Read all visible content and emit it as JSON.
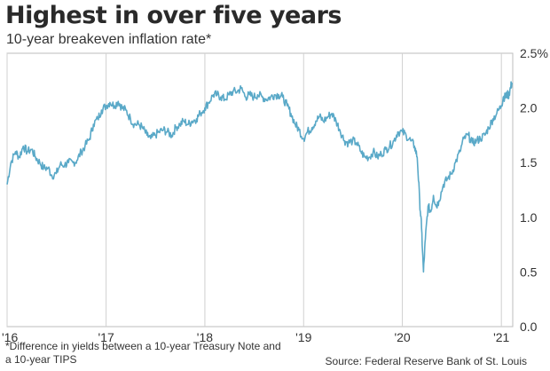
{
  "header": {
    "title": "Highest in over five years",
    "subtitle": "10-year breakeven inflation rate*"
  },
  "footer": {
    "footnote": "*Difference in yields between a 10-year Treasury Note and a 10-year TIPS",
    "source": "Source: Federal Reserve Bank of St. Louis"
  },
  "chart_data": {
    "type": "line",
    "title": "Highest in over five years",
    "subtitle": "10-year breakeven inflation rate*",
    "xlabel": "",
    "ylabel": "",
    "x_ticks": [
      {
        "date": "2016-01-01",
        "label": "'16"
      },
      {
        "date": "2017-01-01",
        "label": "'17"
      },
      {
        "date": "2018-01-01",
        "label": "'18"
      },
      {
        "date": "2019-01-01",
        "label": "'19"
      },
      {
        "date": "2020-01-01",
        "label": "'20"
      },
      {
        "date": "2021-01-01",
        "label": "'21"
      }
    ],
    "y_ticks": [
      {
        "value": 0.0,
        "label": "0.0"
      },
      {
        "value": 0.5,
        "label": "0.5"
      },
      {
        "value": 1.0,
        "label": "1.0"
      },
      {
        "value": 1.5,
        "label": "1.5"
      },
      {
        "value": 2.0,
        "label": "2.0"
      },
      {
        "value": 2.5,
        "label": "2.5%"
      }
    ],
    "xlim": [
      "2016-01-01",
      "2021-02-12"
    ],
    "ylim": [
      0,
      2.5
    ],
    "y_axis_side": "right",
    "grid": "vertical at year ticks",
    "line_color": "#5aa9c8",
    "series": [
      {
        "points": [
          [
            "2016-01-01",
            1.3
          ],
          [
            "2016-01-15",
            1.5
          ],
          [
            "2016-02-01",
            1.6
          ],
          [
            "2016-02-15",
            1.55
          ],
          [
            "2016-03-01",
            1.65
          ],
          [
            "2016-03-15",
            1.6
          ],
          [
            "2016-04-01",
            1.62
          ],
          [
            "2016-04-15",
            1.55
          ],
          [
            "2016-05-01",
            1.5
          ],
          [
            "2016-05-15",
            1.45
          ],
          [
            "2016-06-01",
            1.45
          ],
          [
            "2016-06-15",
            1.38
          ],
          [
            "2016-07-01",
            1.4
          ],
          [
            "2016-07-15",
            1.48
          ],
          [
            "2016-08-01",
            1.48
          ],
          [
            "2016-08-15",
            1.5
          ],
          [
            "2016-09-01",
            1.5
          ],
          [
            "2016-09-15",
            1.52
          ],
          [
            "2016-10-01",
            1.6
          ],
          [
            "2016-10-15",
            1.65
          ],
          [
            "2016-11-01",
            1.72
          ],
          [
            "2016-11-15",
            1.85
          ],
          [
            "2016-12-01",
            1.9
          ],
          [
            "2016-12-15",
            1.98
          ],
          [
            "2017-01-01",
            2.02
          ],
          [
            "2017-01-15",
            2.05
          ],
          [
            "2017-02-01",
            2.02
          ],
          [
            "2017-02-15",
            2.06
          ],
          [
            "2017-03-01",
            2.0
          ],
          [
            "2017-03-15",
            1.98
          ],
          [
            "2017-04-01",
            1.9
          ],
          [
            "2017-04-15",
            1.85
          ],
          [
            "2017-05-01",
            1.85
          ],
          [
            "2017-05-15",
            1.82
          ],
          [
            "2017-06-01",
            1.75
          ],
          [
            "2017-06-15",
            1.72
          ],
          [
            "2017-07-01",
            1.75
          ],
          [
            "2017-07-15",
            1.78
          ],
          [
            "2017-08-01",
            1.8
          ],
          [
            "2017-08-15",
            1.78
          ],
          [
            "2017-09-01",
            1.75
          ],
          [
            "2017-09-15",
            1.82
          ],
          [
            "2017-10-01",
            1.85
          ],
          [
            "2017-10-15",
            1.88
          ],
          [
            "2017-11-01",
            1.85
          ],
          [
            "2017-11-15",
            1.88
          ],
          [
            "2017-12-01",
            1.9
          ],
          [
            "2017-12-15",
            1.95
          ],
          [
            "2018-01-01",
            2.0
          ],
          [
            "2018-01-15",
            2.05
          ],
          [
            "2018-02-01",
            2.12
          ],
          [
            "2018-02-15",
            2.12
          ],
          [
            "2018-03-01",
            2.1
          ],
          [
            "2018-03-15",
            2.08
          ],
          [
            "2018-04-01",
            2.12
          ],
          [
            "2018-04-15",
            2.15
          ],
          [
            "2018-05-01",
            2.15
          ],
          [
            "2018-05-15",
            2.18
          ],
          [
            "2018-06-01",
            2.1
          ],
          [
            "2018-06-15",
            2.12
          ],
          [
            "2018-07-01",
            2.1
          ],
          [
            "2018-07-15",
            2.12
          ],
          [
            "2018-08-01",
            2.1
          ],
          [
            "2018-08-15",
            2.08
          ],
          [
            "2018-09-01",
            2.1
          ],
          [
            "2018-09-15",
            2.12
          ],
          [
            "2018-10-01",
            2.12
          ],
          [
            "2018-10-15",
            2.1
          ],
          [
            "2018-11-01",
            2.02
          ],
          [
            "2018-11-15",
            1.95
          ],
          [
            "2018-12-01",
            1.85
          ],
          [
            "2018-12-15",
            1.8
          ],
          [
            "2019-01-01",
            1.72
          ],
          [
            "2019-01-15",
            1.78
          ],
          [
            "2019-02-01",
            1.82
          ],
          [
            "2019-02-15",
            1.88
          ],
          [
            "2019-03-01",
            1.92
          ],
          [
            "2019-03-15",
            1.88
          ],
          [
            "2019-04-01",
            1.92
          ],
          [
            "2019-04-15",
            1.95
          ],
          [
            "2019-05-01",
            1.88
          ],
          [
            "2019-05-15",
            1.8
          ],
          [
            "2019-06-01",
            1.7
          ],
          [
            "2019-06-15",
            1.68
          ],
          [
            "2019-07-01",
            1.7
          ],
          [
            "2019-07-15",
            1.68
          ],
          [
            "2019-08-01",
            1.6
          ],
          [
            "2019-08-15",
            1.55
          ],
          [
            "2019-09-01",
            1.55
          ],
          [
            "2019-09-15",
            1.6
          ],
          [
            "2019-10-01",
            1.55
          ],
          [
            "2019-10-15",
            1.58
          ],
          [
            "2019-11-01",
            1.62
          ],
          [
            "2019-11-15",
            1.65
          ],
          [
            "2019-12-01",
            1.7
          ],
          [
            "2019-12-15",
            1.78
          ],
          [
            "2020-01-01",
            1.78
          ],
          [
            "2020-01-15",
            1.75
          ],
          [
            "2020-02-01",
            1.7
          ],
          [
            "2020-02-15",
            1.65
          ],
          [
            "2020-02-25",
            1.55
          ],
          [
            "2020-03-05",
            1.15
          ],
          [
            "2020-03-12",
            0.9
          ],
          [
            "2020-03-19",
            0.5
          ],
          [
            "2020-03-26",
            0.8
          ],
          [
            "2020-04-05",
            1.1
          ],
          [
            "2020-04-15",
            1.05
          ],
          [
            "2020-04-25",
            1.2
          ],
          [
            "2020-05-05",
            1.1
          ],
          [
            "2020-05-15",
            1.15
          ],
          [
            "2020-06-01",
            1.3
          ],
          [
            "2020-06-15",
            1.35
          ],
          [
            "2020-07-01",
            1.4
          ],
          [
            "2020-07-15",
            1.5
          ],
          [
            "2020-08-01",
            1.6
          ],
          [
            "2020-08-15",
            1.72
          ],
          [
            "2020-09-01",
            1.75
          ],
          [
            "2020-09-15",
            1.68
          ],
          [
            "2020-10-01",
            1.7
          ],
          [
            "2020-10-15",
            1.72
          ],
          [
            "2020-11-01",
            1.75
          ],
          [
            "2020-11-15",
            1.82
          ],
          [
            "2020-12-01",
            1.9
          ],
          [
            "2020-12-15",
            1.95
          ],
          [
            "2021-01-01",
            2.02
          ],
          [
            "2021-01-08",
            2.1
          ],
          [
            "2021-01-15",
            2.1
          ],
          [
            "2021-01-22",
            2.12
          ],
          [
            "2021-01-29",
            2.12
          ],
          [
            "2021-02-05",
            2.2
          ],
          [
            "2021-02-10",
            2.23
          ]
        ]
      }
    ]
  }
}
